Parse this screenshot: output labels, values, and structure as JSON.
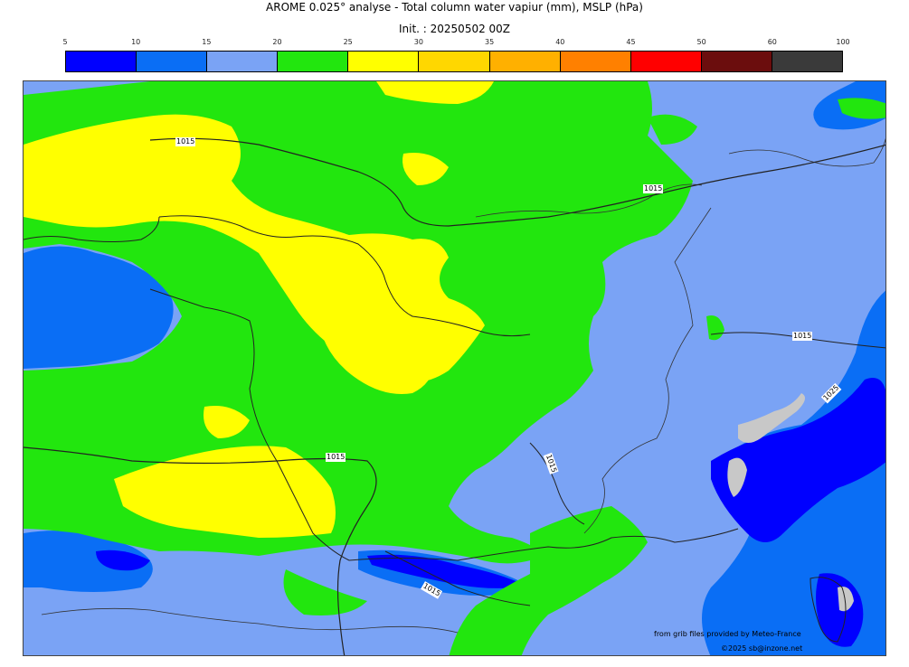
{
  "title_line1": "AROME 0.025° analyse - Total column water vapiur (mm), MSLP (hPa)",
  "title_line2": "Init. : 20250502 00Z",
  "colorbar": {
    "ticks": [
      "5",
      "10",
      "15",
      "20",
      "25",
      "30",
      "35",
      "40",
      "45",
      "50",
      "60",
      "100"
    ],
    "colors": [
      "#0000ff",
      "#0a6ef5",
      "#7aa3f5",
      "#22e60e",
      "#ffff00",
      "#ffd700",
      "#ffb000",
      "#ff8000",
      "#ff0000",
      "#6b0d0d",
      "#3a3a3a"
    ]
  },
  "isobars": {
    "label_1015": "1015",
    "label_1025": "1025"
  },
  "credits": {
    "line1": "from grib files provided by Meteo-France",
    "line2": "©2025 sb@inzone.net"
  }
}
